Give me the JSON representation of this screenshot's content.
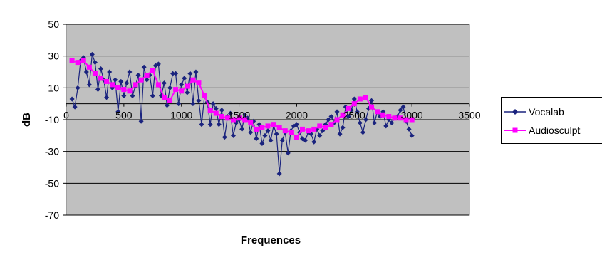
{
  "chart_data": {
    "type": "line",
    "title": "",
    "xlabel": "Frequences",
    "ylabel": "dB",
    "xlim": [
      0,
      3500
    ],
    "ylim": [
      -70,
      50
    ],
    "x_ticks": [
      "0",
      "500",
      "1000",
      "1500",
      "2000",
      "2500",
      "3000",
      "3500"
    ],
    "y_ticks": [
      "50",
      "30",
      "10",
      "-10",
      "-30",
      "-50",
      "-70"
    ],
    "grid": "horizontal",
    "legend_position": "right",
    "plot_background": "#c0c0c0",
    "series": [
      {
        "name": "Vocalab",
        "color": "#1a237e",
        "marker": "diamond",
        "x": [
          50,
          75,
          100,
          125,
          150,
          175,
          200,
          225,
          250,
          275,
          300,
          325,
          350,
          375,
          400,
          425,
          450,
          475,
          500,
          525,
          550,
          575,
          600,
          625,
          650,
          675,
          700,
          725,
          750,
          775,
          800,
          825,
          850,
          875,
          900,
          925,
          950,
          975,
          1000,
          1025,
          1050,
          1075,
          1100,
          1125,
          1150,
          1175,
          1200,
          1225,
          1250,
          1275,
          1300,
          1325,
          1350,
          1375,
          1400,
          1425,
          1450,
          1475,
          1500,
          1525,
          1550,
          1575,
          1600,
          1625,
          1650,
          1675,
          1700,
          1725,
          1750,
          1775,
          1800,
          1825,
          1850,
          1875,
          1900,
          1925,
          1950,
          1975,
          2000,
          2025,
          2050,
          2075,
          2100,
          2125,
          2150,
          2175,
          2200,
          2225,
          2250,
          2275,
          2300,
          2325,
          2350,
          2375,
          2400,
          2425,
          2450,
          2475,
          2500,
          2525,
          2550,
          2575,
          2600,
          2625,
          2650,
          2675,
          2700,
          2725,
          2750,
          2775,
          2800,
          2825,
          2850,
          2875,
          2900,
          2925,
          2950,
          2975,
          3000
        ],
        "values": [
          3,
          -2,
          10,
          27,
          29,
          20,
          12,
          31,
          26,
          9,
          22,
          15,
          4,
          20,
          10,
          15,
          -5,
          14,
          5,
          13,
          20,
          5,
          11,
          18,
          -11,
          23,
          15,
          18,
          5,
          24,
          25,
          5,
          13,
          -1,
          10,
          19,
          19,
          0,
          12,
          16,
          7,
          19,
          0,
          20,
          2,
          -13,
          5,
          1,
          -13,
          0,
          -3,
          -13,
          -4,
          -21,
          -8,
          -6,
          -20,
          -12,
          -10,
          -16,
          -7,
          -9,
          -18,
          -11,
          -22,
          -13,
          -25,
          -20,
          -17,
          -23,
          -14,
          -19,
          -44,
          -23,
          -18,
          -31,
          -17,
          -14,
          -13,
          -18,
          -22,
          -23,
          -18,
          -19,
          -24,
          -16,
          -20,
          -17,
          -13,
          -10,
          -8,
          -12,
          -5,
          -19,
          -15,
          -2,
          -8,
          -4,
          3,
          -5,
          -12,
          -18,
          -10,
          -3,
          2,
          -12,
          -5,
          -8,
          -5,
          -14,
          -10,
          -12,
          -9,
          -8,
          -4,
          -2,
          -11,
          -16,
          -20
        ]
      },
      {
        "name": "Audiosculpt",
        "color": "#ff00ff",
        "marker": "square",
        "x": [
          50,
          100,
          150,
          200,
          250,
          300,
          350,
          400,
          450,
          500,
          550,
          600,
          650,
          700,
          750,
          800,
          850,
          900,
          950,
          1000,
          1050,
          1100,
          1150,
          1200,
          1250,
          1300,
          1350,
          1400,
          1450,
          1500,
          1550,
          1600,
          1650,
          1700,
          1750,
          1800,
          1850,
          1900,
          1950,
          2000,
          2050,
          2100,
          2150,
          2200,
          2250,
          2300,
          2350,
          2400,
          2450,
          2500,
          2550,
          2600,
          2650,
          2700,
          2750,
          2800,
          2850,
          2900,
          2950,
          3000
        ],
        "values": [
          27,
          26,
          27,
          23,
          19,
          16,
          14,
          12,
          10,
          9,
          8,
          12,
          15,
          18,
          21,
          12,
          4,
          2,
          9,
          8,
          11,
          15,
          13,
          5,
          -4,
          -6,
          -8,
          -9,
          -10,
          -9,
          -10,
          -12,
          -16,
          -15,
          -14,
          -13,
          -15,
          -17,
          -18,
          -21,
          -16,
          -17,
          -16,
          -14,
          -15,
          -13,
          -10,
          -7,
          -3,
          0,
          3,
          4,
          -2,
          -5,
          -7,
          -8,
          -9,
          -9,
          -10,
          -10
        ]
      }
    ]
  }
}
